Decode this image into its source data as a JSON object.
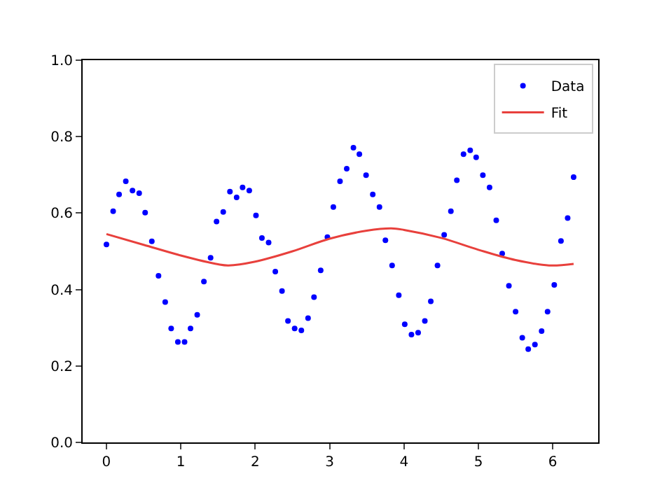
{
  "chart_data": {
    "type": "scatter",
    "legend": "top right",
    "xlim": [
      -0.32,
      6.61
    ],
    "ylim": [
      0,
      1
    ],
    "xticks": [
      0,
      1,
      2,
      3,
      4,
      5,
      6
    ],
    "yticks": [
      {
        "value": 0,
        "label": "0.0"
      },
      {
        "value": 0.2,
        "label": "0.2"
      },
      {
        "value": 0.4,
        "label": "0.4"
      },
      {
        "value": 0.6,
        "label": "0.6"
      },
      {
        "value": 0.8,
        "label": "0.8"
      },
      {
        "value": 1,
        "label": "1.0"
      }
    ],
    "series": [
      {
        "name": "Data",
        "marker": "circle",
        "color": "#0000ff",
        "x": [
          0,
          0.09,
          0.17,
          0.26,
          0.35,
          0.44,
          0.52,
          0.61,
          0.7,
          0.79,
          0.87,
          0.96,
          1.05,
          1.13,
          1.22,
          1.31,
          1.4,
          1.48,
          1.57,
          1.66,
          1.75,
          1.83,
          1.92,
          2.01,
          2.09,
          2.18,
          2.27,
          2.36,
          2.44,
          2.53,
          2.62,
          2.71,
          2.79,
          2.88,
          2.97,
          3.05,
          3.14,
          3.23,
          3.32,
          3.4,
          3.49,
          3.58,
          3.67,
          3.75,
          3.84,
          3.93,
          4.01,
          4.1,
          4.19,
          4.28,
          4.36,
          4.45,
          4.54,
          4.63,
          4.71,
          4.8,
          4.89,
          4.97,
          5.06,
          5.15,
          5.24,
          5.32,
          5.41,
          5.5,
          5.59,
          5.67,
          5.76,
          5.85,
          5.93,
          6.02,
          6.11,
          6.2,
          6.28
        ],
        "values": [
          0.518,
          0.605,
          0.649,
          0.683,
          0.659,
          0.652,
          0.601,
          0.526,
          0.436,
          0.367,
          0.298,
          0.263,
          0.263,
          0.298,
          0.334,
          0.421,
          0.483,
          0.578,
          0.603,
          0.656,
          0.641,
          0.667,
          0.659,
          0.594,
          0.535,
          0.523,
          0.447,
          0.396,
          0.318,
          0.298,
          0.293,
          0.325,
          0.38,
          0.45,
          0.537,
          0.616,
          0.683,
          0.716,
          0.771,
          0.754,
          0.699,
          0.649,
          0.616,
          0.529,
          0.463,
          0.385,
          0.309,
          0.282,
          0.287,
          0.318,
          0.369,
          0.463,
          0.543,
          0.605,
          0.686,
          0.754,
          0.764,
          0.746,
          0.699,
          0.667,
          0.581,
          0.494,
          0.41,
          0.342,
          0.274,
          0.244,
          0.256,
          0.291,
          0.342,
          0.412,
          0.527,
          0.587,
          0.694
        ]
      },
      {
        "name": "Fit",
        "type": "line",
        "marker": "none",
        "line_style": "solid",
        "color": "#e8403c",
        "x": [
          0,
          0.5,
          1,
          1.5,
          1.64,
          2,
          2.5,
          3,
          3.5,
          3.83,
          4,
          4.5,
          5,
          5.5,
          5.95,
          6.28
        ],
        "values": [
          0.545,
          0.517,
          0.489,
          0.466,
          0.463,
          0.473,
          0.5,
          0.533,
          0.554,
          0.56,
          0.556,
          0.535,
          0.504,
          0.477,
          0.463,
          0.467
        ]
      }
    ]
  }
}
